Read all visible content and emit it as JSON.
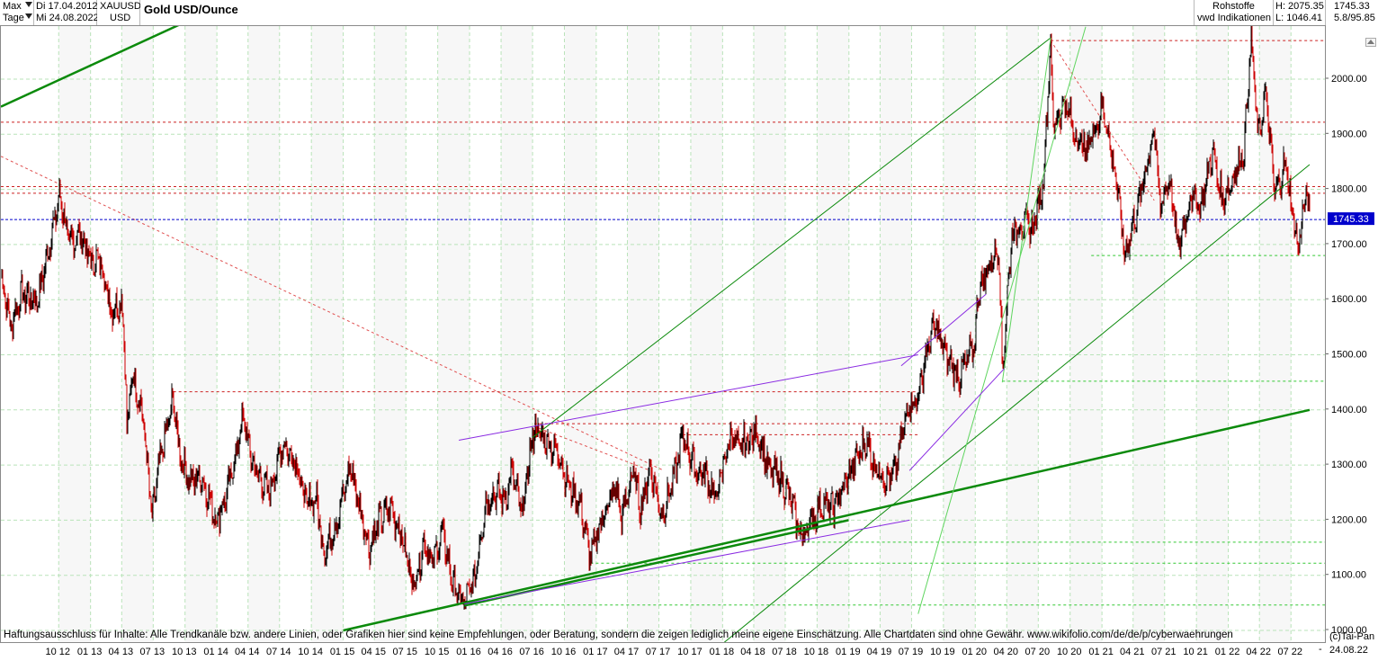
{
  "header": {
    "range_label": "Max",
    "interval_label": "Tage",
    "start_date": "Di 17.04.2012",
    "end_date": "Mi 24.08.2022",
    "symbol": "XAUUSD",
    "currency": "USD",
    "title": "Gold USD/Ounce",
    "category": "Rohstoffe",
    "source": "vwd Indikationen",
    "high_label": "H: 2075.35",
    "low_label": "L: 1046.41",
    "last_value": "1745.33",
    "change_label": "5.8/95.85"
  },
  "footer": {
    "disclaimer": "Haftungsausschluss für Inhalte: Alle Trendkanäle bzw. andere Linien, oder Grafiken hier sind keine Empfehlungen, oder Beratung, sondern die zeigen lediglich meine eigene Einschätzung. Alle Chartdaten sind ohne Gewähr.  www.wikifolio.com/de/de/p/cyberwaehrungen",
    "copyright": "(c)Tai-Pan",
    "end_date": "24.08.22",
    "dash": "-"
  },
  "colors": {
    "up_candle": "#000000",
    "down_candle": "#cc0000",
    "trend_green": "#0b8a0b",
    "channel_green": "#2aa12a",
    "support_green": "#35c935",
    "resistance_red": "#cc2222",
    "channel_purple": "#8a2be2",
    "current_price_blue": "#0000cc",
    "grid": "#b9e3b9"
  },
  "chart_data": {
    "type": "line",
    "title": "Gold USD/Ounce",
    "ylim": [
      1000,
      2100
    ],
    "x_range": [
      "2012-04-17",
      "2022-08-24"
    ],
    "yticks": [
      1000,
      1100,
      1200,
      1300,
      1400,
      1500,
      1600,
      1700,
      1800,
      1900,
      2000
    ],
    "ytick_labels": [
      "1000.00",
      "1100.00",
      "1200.00",
      "1300.00",
      "1400.00",
      "1500.00",
      "1600.00",
      "1700.00",
      "1800.00",
      "1900.00",
      "2000.00"
    ],
    "xticks": [
      {
        "label": "10 12",
        "date": "2012-10-01"
      },
      {
        "label": "01 13",
        "date": "2013-01-01"
      },
      {
        "label": "04 13",
        "date": "2013-04-01"
      },
      {
        "label": "07 13",
        "date": "2013-07-01"
      },
      {
        "label": "10 13",
        "date": "2013-10-01"
      },
      {
        "label": "01 14",
        "date": "2014-01-01"
      },
      {
        "label": "04 14",
        "date": "2014-04-01"
      },
      {
        "label": "07 14",
        "date": "2014-07-01"
      },
      {
        "label": "10 14",
        "date": "2014-10-01"
      },
      {
        "label": "01 15",
        "date": "2015-01-01"
      },
      {
        "label": "04 15",
        "date": "2015-04-01"
      },
      {
        "label": "07 15",
        "date": "2015-07-01"
      },
      {
        "label": "10 15",
        "date": "2015-10-01"
      },
      {
        "label": "01 16",
        "date": "2016-01-01"
      },
      {
        "label": "04 16",
        "date": "2016-04-01"
      },
      {
        "label": "07 16",
        "date": "2016-07-01"
      },
      {
        "label": "10 16",
        "date": "2016-10-01"
      },
      {
        "label": "01 17",
        "date": "2017-01-01"
      },
      {
        "label": "04 17",
        "date": "2017-04-01"
      },
      {
        "label": "07 17",
        "date": "2017-07-01"
      },
      {
        "label": "10 17",
        "date": "2017-10-01"
      },
      {
        "label": "01 18",
        "date": "2018-01-01"
      },
      {
        "label": "04 18",
        "date": "2018-04-01"
      },
      {
        "label": "07 18",
        "date": "2018-07-01"
      },
      {
        "label": "10 18",
        "date": "2018-10-01"
      },
      {
        "label": "01 19",
        "date": "2019-01-01"
      },
      {
        "label": "04 19",
        "date": "2019-04-01"
      },
      {
        "label": "07 19",
        "date": "2019-07-01"
      },
      {
        "label": "10 19",
        "date": "2019-10-01"
      },
      {
        "label": "01 20",
        "date": "2020-01-01"
      },
      {
        "label": "04 20",
        "date": "2020-04-01"
      },
      {
        "label": "07 20",
        "date": "2020-07-01"
      },
      {
        "label": "10 20",
        "date": "2020-10-01"
      },
      {
        "label": "01 21",
        "date": "2021-01-01"
      },
      {
        "label": "04 21",
        "date": "2021-04-01"
      },
      {
        "label": "07 21",
        "date": "2021-07-01"
      },
      {
        "label": "10 21",
        "date": "2021-10-01"
      },
      {
        "label": "01 22",
        "date": "2022-01-01"
      },
      {
        "label": "04 22",
        "date": "2022-04-01"
      },
      {
        "label": "07 22",
        "date": "2022-07-01"
      }
    ],
    "current_price": {
      "value": 1745.33,
      "label": "1745.33"
    },
    "series": [
      {
        "type": "candlestick-daily",
        "points": [
          [
            "2012-04-17",
            1650
          ],
          [
            "2012-05-15",
            1550
          ],
          [
            "2012-06-15",
            1610
          ],
          [
            "2012-08-01",
            1600
          ],
          [
            "2012-09-01",
            1690
          ],
          [
            "2012-10-04",
            1790
          ],
          [
            "2012-11-01",
            1700
          ],
          [
            "2012-12-01",
            1720
          ],
          [
            "2013-01-01",
            1670
          ],
          [
            "2013-02-01",
            1670
          ],
          [
            "2013-03-01",
            1580
          ],
          [
            "2013-04-01",
            1600
          ],
          [
            "2013-04-12",
            1480
          ],
          [
            "2013-04-16",
            1350
          ],
          [
            "2013-05-01",
            1470
          ],
          [
            "2013-06-01",
            1390
          ],
          [
            "2013-06-28",
            1200
          ],
          [
            "2013-07-15",
            1290
          ],
          [
            "2013-08-28",
            1420
          ],
          [
            "2013-09-15",
            1320
          ],
          [
            "2013-10-15",
            1270
          ],
          [
            "2013-11-15",
            1280
          ],
          [
            "2013-12-31",
            1200
          ],
          [
            "2014-01-31",
            1250
          ],
          [
            "2014-02-28",
            1330
          ],
          [
            "2014-03-17",
            1390
          ],
          [
            "2014-04-15",
            1300
          ],
          [
            "2014-05-30",
            1250
          ],
          [
            "2014-06-15",
            1280
          ],
          [
            "2014-07-10",
            1340
          ],
          [
            "2014-08-15",
            1310
          ],
          [
            "2014-09-15",
            1230
          ],
          [
            "2014-10-15",
            1240
          ],
          [
            "2014-11-07",
            1140
          ],
          [
            "2014-12-15",
            1200
          ],
          [
            "2015-01-22",
            1300
          ],
          [
            "2015-02-15",
            1230
          ],
          [
            "2015-03-17",
            1150
          ],
          [
            "2015-04-15",
            1200
          ],
          [
            "2015-05-15",
            1225
          ],
          [
            "2015-06-15",
            1180
          ],
          [
            "2015-07-24",
            1080
          ],
          [
            "2015-08-24",
            1165
          ],
          [
            "2015-09-15",
            1120
          ],
          [
            "2015-10-15",
            1180
          ],
          [
            "2015-11-15",
            1080
          ],
          [
            "2015-12-17",
            1050
          ],
          [
            "2016-01-15",
            1090
          ],
          [
            "2016-02-15",
            1230
          ],
          [
            "2016-03-15",
            1250
          ],
          [
            "2016-04-15",
            1240
          ],
          [
            "2016-05-01",
            1290
          ],
          [
            "2016-06-01",
            1210
          ],
          [
            "2016-06-24",
            1320
          ],
          [
            "2016-07-06",
            1370
          ],
          [
            "2016-08-15",
            1340
          ],
          [
            "2016-09-15",
            1320
          ],
          [
            "2016-10-15",
            1260
          ],
          [
            "2016-11-15",
            1230
          ],
          [
            "2016-12-15",
            1130
          ],
          [
            "2017-01-15",
            1200
          ],
          [
            "2017-02-27",
            1260
          ],
          [
            "2017-03-15",
            1200
          ],
          [
            "2017-04-17",
            1290
          ],
          [
            "2017-05-10",
            1220
          ],
          [
            "2017-06-06",
            1295
          ],
          [
            "2017-07-10",
            1210
          ],
          [
            "2017-08-15",
            1280
          ],
          [
            "2017-09-08",
            1355
          ],
          [
            "2017-10-15",
            1290
          ],
          [
            "2017-11-15",
            1280
          ],
          [
            "2017-12-12",
            1240
          ],
          [
            "2018-01-25",
            1360
          ],
          [
            "2018-02-15",
            1330
          ],
          [
            "2018-04-11",
            1360
          ],
          [
            "2018-05-15",
            1290
          ],
          [
            "2018-06-15",
            1280
          ],
          [
            "2018-07-15",
            1240
          ],
          [
            "2018-08-16",
            1170
          ],
          [
            "2018-09-15",
            1200
          ],
          [
            "2018-10-15",
            1230
          ],
          [
            "2018-11-15",
            1220
          ],
          [
            "2018-12-31",
            1280
          ],
          [
            "2019-02-20",
            1345
          ],
          [
            "2019-03-15",
            1300
          ],
          [
            "2019-04-23",
            1270
          ],
          [
            "2019-05-15",
            1290
          ],
          [
            "2019-06-25",
            1420
          ],
          [
            "2019-07-15",
            1410
          ],
          [
            "2019-08-15",
            1510
          ],
          [
            "2019-09-04",
            1555
          ],
          [
            "2019-10-15",
            1490
          ],
          [
            "2019-11-15",
            1460
          ],
          [
            "2019-12-31",
            1520
          ],
          [
            "2020-01-08",
            1610
          ],
          [
            "2020-02-24",
            1680
          ],
          [
            "2020-03-09",
            1700
          ],
          [
            "2020-03-19",
            1470
          ],
          [
            "2020-04-15",
            1720
          ],
          [
            "2020-05-15",
            1740
          ],
          [
            "2020-06-15",
            1730
          ],
          [
            "2020-07-15",
            1810
          ],
          [
            "2020-08-06",
            2075
          ],
          [
            "2020-08-12",
            1910
          ],
          [
            "2020-09-15",
            1960
          ],
          [
            "2020-10-15",
            1900
          ],
          [
            "2020-11-15",
            1870
          ],
          [
            "2021-01-05",
            1950
          ],
          [
            "2021-02-15",
            1800
          ],
          [
            "2021-03-08",
            1680
          ],
          [
            "2021-04-15",
            1770
          ],
          [
            "2021-06-01",
            1910
          ],
          [
            "2021-06-17",
            1770
          ],
          [
            "2021-07-15",
            1820
          ],
          [
            "2021-08-09",
            1690
          ],
          [
            "2021-09-15",
            1790
          ],
          [
            "2021-10-15",
            1770
          ],
          [
            "2021-11-16",
            1870
          ],
          [
            "2021-12-15",
            1780
          ],
          [
            "2022-01-15",
            1820
          ],
          [
            "2022-02-15",
            1870
          ],
          [
            "2022-03-08",
            2070
          ],
          [
            "2022-03-29",
            1890
          ],
          [
            "2022-04-18",
            1980
          ],
          [
            "2022-05-16",
            1790
          ],
          [
            "2022-06-15",
            1850
          ],
          [
            "2022-07-21",
            1690
          ],
          [
            "2022-08-15",
            1800
          ],
          [
            "2022-08-24",
            1745
          ]
        ]
      }
    ],
    "annotations": {
      "trendlines_green": [
        [
          [
            "2012-04-17",
            1950
          ],
          [
            "2014-01-01",
            2130
          ]
        ],
        [
          [
            "2015-01-01",
            1000
          ],
          [
            "2022-08-24",
            1400
          ]
        ],
        [
          [
            "2015-12-17",
            1045
          ],
          [
            "2018-12-31",
            1200
          ]
        ],
        [
          [
            "2016-07-01",
            1350
          ],
          [
            "2020-08-06",
            2075
          ]
        ],
        [
          [
            "2017-12-01",
            960
          ],
          [
            "2022-08-24",
            1845
          ]
        ]
      ],
      "trendlines_green_thin": [
        [
          [
            "2020-03-19",
            1450
          ],
          [
            "2020-08-06",
            2075
          ]
        ],
        [
          [
            "2019-07-20",
            1030
          ],
          [
            "2020-11-15",
            2095
          ]
        ]
      ],
      "trendlines_purple": [
        [
          [
            "2015-12-17",
            1048
          ],
          [
            "2019-06-25",
            1200
          ]
        ],
        [
          [
            "2015-12-01",
            1345
          ],
          [
            "2019-07-20",
            1500
          ]
        ],
        [
          [
            "2019-06-01",
            1480
          ],
          [
            "2020-02-01",
            1610
          ]
        ],
        [
          [
            "2019-06-25",
            1290
          ],
          [
            "2020-03-25",
            1475
          ]
        ]
      ],
      "resistance_red_dashed": [
        {
          "value": 2070,
          "from": "2020-08-06"
        },
        {
          "value": 1922,
          "from": "2012-04-17"
        },
        {
          "value": 1805,
          "from": "2012-04-17"
        },
        {
          "value": 1793,
          "from": "2012-04-17"
        },
        {
          "value": 1433,
          "from": "2013-08-28",
          "to": "2019-07-20"
        },
        {
          "value": 1375,
          "from": "2016-07-06",
          "to": "2019-07-20"
        },
        {
          "value": 1355,
          "from": "2017-09-08",
          "to": "2019-07-20"
        }
      ],
      "diagonal_red_dashed": [
        [
          [
            "2012-04-17",
            1860
          ],
          [
            "2017-07-15",
            1290
          ]
        ],
        [
          [
            "2016-07-06",
            1370
          ],
          [
            "2017-06-06",
            1290
          ]
        ],
        [
          [
            "2020-08-06",
            2070
          ],
          [
            "2021-06-01",
            1780
          ]
        ]
      ],
      "support_green_dashed": [
        {
          "value": 1680,
          "from": "2020-12-01"
        },
        {
          "value": 1452,
          "from": "2020-03-19"
        },
        {
          "value": 1160,
          "from": "2018-08-16"
        },
        {
          "value": 1122,
          "from": "2016-12-15"
        },
        {
          "value": 1046,
          "from": "2015-12-17"
        }
      ]
    }
  }
}
